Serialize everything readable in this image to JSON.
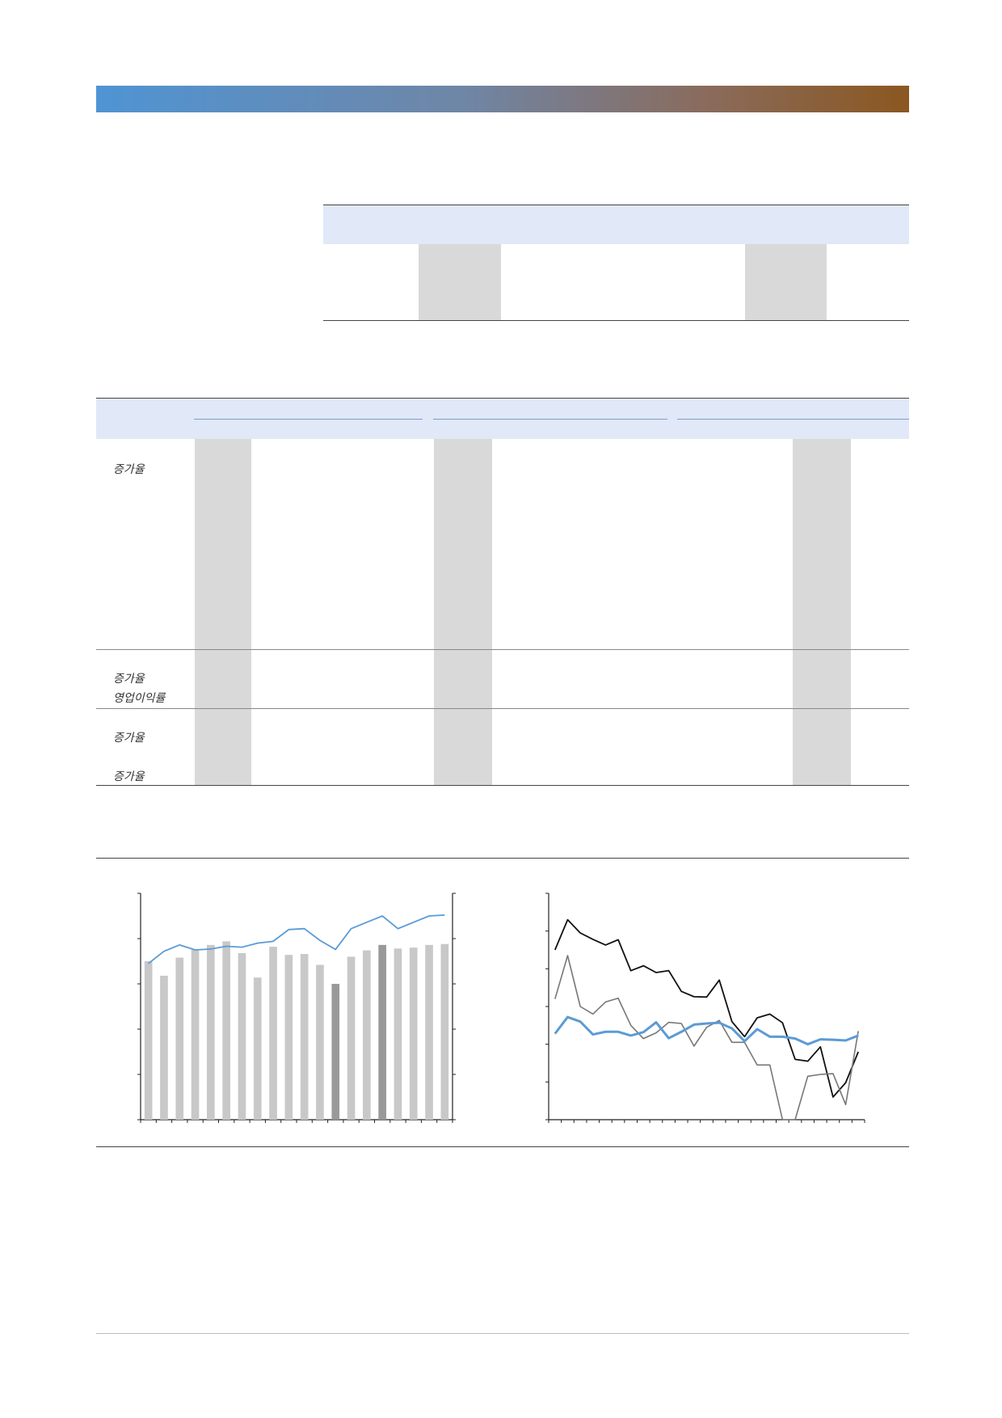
{
  "table2": {
    "row_labels": [
      {
        "text": "증가율"
      },
      {
        "text": "증가율"
      },
      {
        "text": "영업이익률"
      },
      {
        "text": "증가율"
      },
      {
        "text": "증가율"
      }
    ]
  },
  "colors": {
    "header_gradient_start": "#4f94d4",
    "header_gradient_end": "#8b5720",
    "band": "#e1e8f7",
    "shade": "#d9d9d9",
    "bar_light": "#c8c8c8",
    "bar_dark": "#999999",
    "line_blue": "#5b9bd5",
    "line_black": "#111111",
    "line_gray": "#777777"
  },
  "chart_data": [
    {
      "type": "bar",
      "ylim": [
        0,
        5
      ],
      "bars": [
        3.5,
        3.18,
        3.58,
        3.76,
        3.86,
        3.94,
        3.68,
        3.14,
        3.82,
        3.64,
        3.66,
        3.42,
        3.0,
        3.6,
        3.74,
        3.86,
        3.78,
        3.8,
        3.86,
        3.88
      ],
      "bar_highlight": [
        false,
        false,
        false,
        false,
        false,
        false,
        false,
        false,
        false,
        false,
        false,
        false,
        true,
        false,
        false,
        true,
        false,
        false,
        false,
        false
      ],
      "line": [
        3.45,
        3.72,
        3.86,
        3.75,
        3.77,
        3.83,
        3.81,
        3.9,
        3.94,
        4.2,
        4.22,
        3.96,
        3.76,
        4.22,
        4.36,
        4.5,
        4.22,
        4.36,
        4.5,
        4.52
      ]
    },
    {
      "type": "line",
      "ylim": [
        0,
        6
      ],
      "series": [
        {
          "values": [
            4.5,
            5.3,
            4.95,
            4.78,
            4.63,
            4.77,
            3.95,
            4.08,
            3.9,
            3.95,
            3.4,
            3.26,
            3.25,
            3.7,
            2.6,
            2.2,
            2.7,
            2.8,
            2.57,
            1.6,
            1.55,
            1.93,
            0.6,
            0.98,
            1.8
          ]
        },
        {
          "values": [
            3.2,
            4.35,
            3.0,
            2.8,
            3.12,
            3.22,
            2.5,
            2.15,
            2.3,
            2.58,
            2.55,
            1.95,
            2.45,
            2.63,
            2.05,
            2.05,
            1.45,
            1.45,
            0.0,
            0.0,
            1.15,
            1.2,
            1.22,
            0.4,
            2.35
          ]
        },
        {
          "values": [
            2.28,
            2.72,
            2.6,
            2.26,
            2.33,
            2.33,
            2.23,
            2.32,
            2.58,
            2.16,
            2.33,
            2.52,
            2.55,
            2.57,
            2.42,
            2.08,
            2.4,
            2.2,
            2.2,
            2.15,
            2.0,
            2.13,
            2.12,
            2.1,
            2.23
          ]
        }
      ]
    }
  ]
}
